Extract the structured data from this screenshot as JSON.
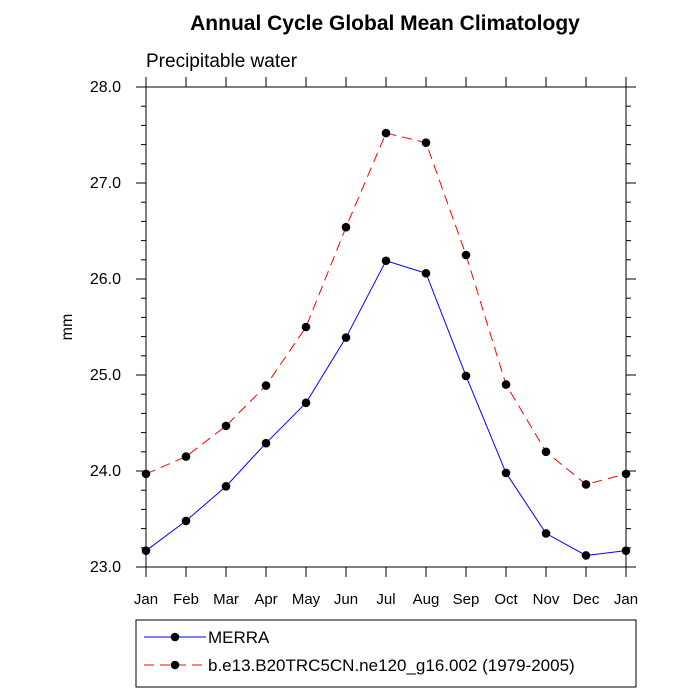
{
  "chart_data": {
    "type": "line",
    "title": "Annual Cycle Global Mean Climatology",
    "subtitle": "Precipitable water",
    "xlabel": "",
    "ylabel": "mm",
    "categories": [
      "Jan",
      "Feb",
      "Mar",
      "Apr",
      "May",
      "Jun",
      "Jul",
      "Aug",
      "Sep",
      "Oct",
      "Nov",
      "Dec",
      "Jan"
    ],
    "ylim": [
      23.0,
      28.0
    ],
    "yticks": [
      "23.0",
      "24.0",
      "25.0",
      "26.0",
      "27.0",
      "28.0"
    ],
    "series": [
      {
        "name": "MERRA",
        "color": "#0000ff",
        "dash": "solid",
        "marker": "circle",
        "values": [
          23.17,
          23.48,
          23.84,
          24.29,
          24.71,
          25.39,
          26.19,
          26.06,
          24.99,
          23.98,
          23.35,
          23.12,
          23.17
        ]
      },
      {
        "name": "b.e13.B20TRC5CN.ne120_g16.002 (1979-2005)",
        "color": "#ff0000",
        "dash": "dashed",
        "marker": "circle",
        "values": [
          23.97,
          24.15,
          24.47,
          24.89,
          25.5,
          26.54,
          27.52,
          27.42,
          26.25,
          24.9,
          24.2,
          23.86,
          23.97
        ]
      }
    ],
    "legend_position": "bottom",
    "grid": false
  }
}
